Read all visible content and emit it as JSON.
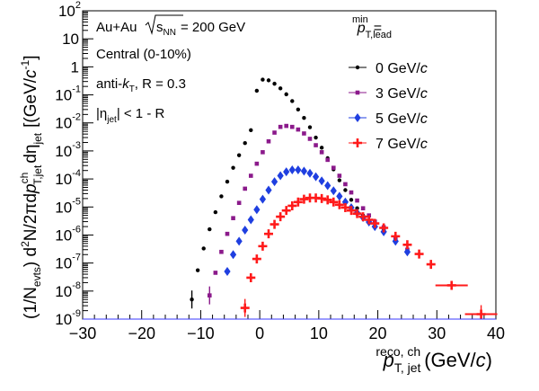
{
  "chart_data": {
    "type": "scatter",
    "y_scale": "log",
    "xlim": [
      -30,
      40
    ],
    "ylim": [
      1e-09,
      100
    ],
    "x_ticks": [
      -30,
      -20,
      -10,
      0,
      10,
      20,
      30,
      40
    ],
    "y_ticks": [
      {
        "v": 1e-09,
        "base": "10",
        "exp": "-9"
      },
      {
        "v": 1e-08,
        "base": "10",
        "exp": "-8"
      },
      {
        "v": 1e-07,
        "base": "10",
        "exp": "-7"
      },
      {
        "v": 1e-06,
        "base": "10",
        "exp": "-6"
      },
      {
        "v": 1e-05,
        "base": "10",
        "exp": "-5"
      },
      {
        "v": 0.0001,
        "base": "10",
        "exp": "-4"
      },
      {
        "v": 0.001,
        "base": "10",
        "exp": "-3"
      },
      {
        "v": 0.01,
        "base": "10",
        "exp": "-2"
      },
      {
        "v": 0.1,
        "base": "10",
        "exp": "-1"
      },
      {
        "v": 1,
        "base": "1",
        "exp": ""
      },
      {
        "v": 10,
        "base": "10",
        "exp": ""
      },
      {
        "v": 100,
        "base": "10",
        "exp": "2"
      }
    ],
    "grid": false,
    "xlabel": {
      "var": "p",
      "sup": "reco, ch",
      "sub": "T, jet",
      "unit_open": "(GeV/",
      "unit_var": "c",
      "unit_close": ")"
    },
    "ylabel": {
      "p1": "(1/N",
      "p1_sub": "evts",
      "p2": ") d",
      "p2_sup": "2",
      "p3": "N/2πd",
      "p3_var": "p",
      "p3_sup": "ch",
      "p3_sub": "T,jet",
      "p4": "dη",
      "p4_sub": "jet",
      "p5": "[(GeV/",
      "p5_var": "c",
      "p5_sup": "-1",
      "p5_close": "]"
    },
    "annotations": {
      "collision": "Au+Au",
      "sqrt_s": "s",
      "sqrt_s_sub": "NN",
      "energy": "= 200 GeV",
      "centrality": "Central (0-10%)",
      "algo_pre": "anti-",
      "algo_var": "k",
      "algo_sub": "T",
      "algo_post": ", R = 0.3",
      "eta_pre": "|η",
      "eta_sub": "jet",
      "eta_post": "| < 1 - R"
    },
    "legend": {
      "position": "top-right",
      "title_var": "p",
      "title_sup": "min",
      "title_sub": "T,lead",
      "title_eq": "="
    },
    "series": [
      {
        "name": "0 GeV/",
        "name_var": "c",
        "color": "#000000",
        "marker": "circle",
        "points": [
          [
            -11.5,
            5e-09
          ],
          [
            -10.5,
            5.5e-08
          ],
          [
            -9.5,
            3.3e-07
          ],
          [
            -8.5,
            1.6e-06
          ],
          [
            -7.5,
            6.5e-06
          ],
          [
            -6.5,
            2.4e-05
          ],
          [
            -5.5,
            8e-05
          ],
          [
            -4.5,
            0.00025
          ],
          [
            -3.5,
            0.0007
          ],
          [
            -2.5,
            0.0019
          ],
          [
            -1.5,
            0.0055
          ],
          [
            -0.5,
            0.14
          ],
          [
            0.5,
            0.35
          ],
          [
            1.5,
            0.33
          ],
          [
            2.5,
            0.25
          ],
          [
            3.5,
            0.17
          ],
          [
            4.5,
            0.105
          ],
          [
            5.5,
            0.06
          ],
          [
            6.5,
            0.03
          ],
          [
            7.5,
            0.015
          ],
          [
            8.5,
            0.007
          ],
          [
            9.5,
            0.003
          ],
          [
            10.5,
            0.0013
          ],
          [
            11.5,
            0.00055
          ],
          [
            12.5,
            0.00022
          ],
          [
            13.5,
            9e-05
          ],
          [
            14.5,
            4e-05
          ],
          [
            15.5,
            1.8e-05
          ],
          [
            16.5,
            9e-06
          ],
          [
            17.5,
            5e-06
          ],
          [
            18.5,
            3.2e-06
          ],
          [
            19.5,
            2e-06
          ],
          [
            21,
            1.6e-06
          ],
          [
            23,
            6e-07
          ]
        ]
      },
      {
        "name": "3 GeV/",
        "name_var": "c",
        "color": "#8b1a8b",
        "marker": "square",
        "points": [
          [
            -8.5,
            7e-09
          ],
          [
            -7.5,
            4.5e-08
          ],
          [
            -6.5,
            2.5e-07
          ],
          [
            -5.5,
            1.1e-06
          ],
          [
            -4.5,
            4e-06
          ],
          [
            -3.5,
            1.4e-05
          ],
          [
            -2.5,
            4.5e-05
          ],
          [
            -1.5,
            0.00013
          ],
          [
            -0.5,
            0.00035
          ],
          [
            0.5,
            0.0009
          ],
          [
            1.5,
            0.0022
          ],
          [
            2.5,
            0.0045
          ],
          [
            3.5,
            0.0072
          ],
          [
            4.5,
            0.0078
          ],
          [
            5.5,
            0.0072
          ],
          [
            6.5,
            0.0058
          ],
          [
            7.5,
            0.0042
          ],
          [
            8.5,
            0.0027
          ],
          [
            9.5,
            0.0016
          ],
          [
            10.5,
            0.0009
          ],
          [
            11.5,
            0.00048
          ],
          [
            12.5,
            0.00025
          ],
          [
            13.5,
            0.00013
          ],
          [
            14.5,
            6.5e-05
          ],
          [
            15.5,
            3.3e-05
          ],
          [
            16.5,
            1.7e-05
          ],
          [
            17.5,
            9e-06
          ],
          [
            18.5,
            5e-06
          ],
          [
            19.5,
            3e-06
          ],
          [
            21,
            1.9e-06
          ],
          [
            23,
            8e-07
          ],
          [
            25,
            3e-07
          ]
        ]
      },
      {
        "name": "5 GeV/",
        "name_var": "c",
        "color": "#1f3fe0",
        "marker": "diamond",
        "points": [
          [
            -5.5,
            5e-08
          ],
          [
            -4.5,
            2e-07
          ],
          [
            -3.5,
            6e-07
          ],
          [
            -2.5,
            1.5e-06
          ],
          [
            -1.5,
            3.5e-06
          ],
          [
            -0.5,
            8e-06
          ],
          [
            0.5,
            1.9e-05
          ],
          [
            1.5,
            4e-05
          ],
          [
            2.5,
            8e-05
          ],
          [
            3.5,
            0.00013
          ],
          [
            4.5,
            0.00018
          ],
          [
            5.5,
            0.00021
          ],
          [
            6.5,
            0.00021
          ],
          [
            7.5,
            0.00019
          ],
          [
            8.5,
            0.00016
          ],
          [
            9.5,
            0.00012
          ],
          [
            10.5,
            8.5e-05
          ],
          [
            11.5,
            5.8e-05
          ],
          [
            12.5,
            3.8e-05
          ],
          [
            13.5,
            2.4e-05
          ],
          [
            14.5,
            1.5e-05
          ],
          [
            15.5,
            9.5e-06
          ],
          [
            16.5,
            6.2e-06
          ],
          [
            17.5,
            4.2e-06
          ],
          [
            18.5,
            2.9e-06
          ],
          [
            19.5,
            2e-06
          ],
          [
            21,
            1.3e-06
          ],
          [
            23,
            6e-07
          ],
          [
            25,
            2.5e-07
          ]
        ]
      },
      {
        "name": "7 GeV/",
        "name_var": "c",
        "color": "#ff1a1a",
        "marker": "cross",
        "points": [
          [
            -2.5,
            2.5e-09
          ],
          [
            -1.5,
            3e-08
          ],
          [
            -0.5,
            1.4e-07
          ],
          [
            0.5,
            4e-07
          ],
          [
            1.5,
            1.1e-06
          ],
          [
            2.5,
            2.4e-06
          ],
          [
            3.5,
            4.5e-06
          ],
          [
            4.5,
            7.5e-06
          ],
          [
            5.5,
            1.1e-05
          ],
          [
            6.5,
            1.5e-05
          ],
          [
            7.5,
            1.9e-05
          ],
          [
            8.5,
            2.1e-05
          ],
          [
            9.5,
            2.1e-05
          ],
          [
            10.5,
            2e-05
          ],
          [
            11.5,
            1.8e-05
          ],
          [
            12.5,
            1.5e-05
          ],
          [
            13.5,
            1.2e-05
          ],
          [
            14.5,
            9.5e-06
          ],
          [
            15.5,
            7.5e-06
          ],
          [
            16.5,
            5.8e-06
          ],
          [
            17.5,
            4.5e-06
          ],
          [
            18.5,
            3.5e-06
          ],
          [
            19.5,
            2.6e-06
          ],
          [
            21,
            1.8e-06
          ],
          [
            23,
            9e-07
          ],
          [
            25,
            4.5e-07
          ],
          [
            27,
            2.1e-07
          ],
          [
            29,
            9e-08
          ],
          [
            32.5,
            1.6e-08
          ],
          [
            37.5,
            1.5e-09
          ]
        ]
      }
    ]
  }
}
